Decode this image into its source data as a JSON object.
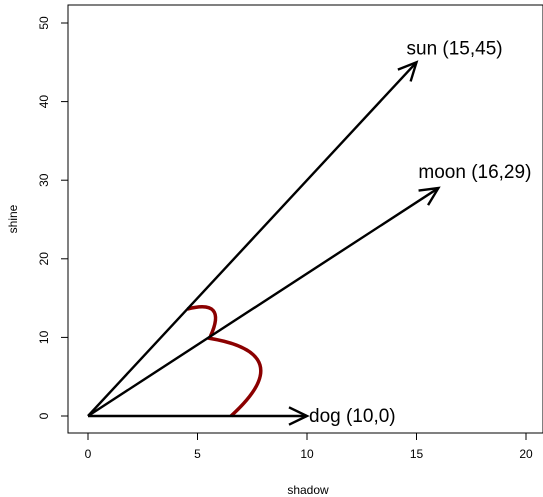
{
  "chart_data": {
    "type": "vector-plot",
    "title": "",
    "xlabel": "shadow",
    "ylabel": "shine",
    "xlim": [
      0,
      20
    ],
    "ylim": [
      0,
      50
    ],
    "xticks": [
      "0",
      "5",
      "10",
      "15",
      "20"
    ],
    "yticks": [
      "0",
      "10",
      "20",
      "30",
      "40",
      "50"
    ],
    "grid": false,
    "vectors": [
      {
        "label": "sun (15,45)",
        "x": 15,
        "y": 45
      },
      {
        "label": "moon (16,29)",
        "x": 16,
        "y": 29
      },
      {
        "label": "dog (10,0)",
        "x": 10,
        "y": 0
      }
    ],
    "angle_arcs": [
      {
        "between": [
          "sun",
          "moon"
        ]
      },
      {
        "between": [
          "moon",
          "dog"
        ]
      }
    ],
    "colors": {
      "vectors": "#000000",
      "arcs": "#8b0000"
    }
  }
}
